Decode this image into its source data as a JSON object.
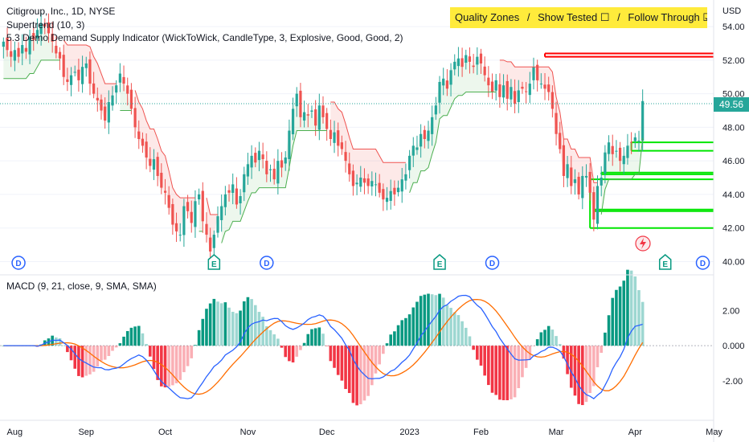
{
  "header": {
    "title": "Citigroup, Inc., 1D, NYSE",
    "supertrend_label": "Supertrend (10, 3)",
    "indicator_label": "5.3 Demo Demand Supply Indicator (WickToWick, CandleType, 3, Explosive, Good, Good, 2)",
    "macd_label": "MACD (9, 21, close, 9, SMA, SMA)"
  },
  "quality_box": {
    "quality": "Quality Zones",
    "sep1": "/",
    "show_tested": "Show Tested ☐",
    "sep2": "/",
    "follow_through": "Follow Through ☑"
  },
  "currency": "USD",
  "last_price": "49.56",
  "colors": {
    "up": "#26a69a",
    "down": "#ef5350",
    "up_bar": "#089981",
    "down_bar": "#f23645",
    "supply": "#ff0000",
    "demand": "#00e600",
    "macd": "#2962ff",
    "signal": "#ff6d00",
    "st_up": "#4caf50",
    "st_down": "#ef5350"
  },
  "chart_data": {
    "type": "candlestick",
    "price_axis": {
      "ticks": [
        "54.00",
        "52.00",
        "50.00",
        "48.00",
        "46.00",
        "44.00",
        "42.00",
        "40.00"
      ],
      "range": [
        39.4,
        55.2
      ]
    },
    "macd_axis": {
      "ticks": [
        "2.00",
        "0.000",
        "-2.00"
      ],
      "range": [
        -4.1,
        3.2
      ]
    },
    "time_labels": [
      "Aug",
      "Sep",
      "Oct",
      "Nov",
      "Dec",
      "2023",
      "Feb",
      "Mar",
      "Apr",
      "May"
    ],
    "events": [
      {
        "type": "D",
        "index": 4
      },
      {
        "type": "E",
        "index": 56
      },
      {
        "type": "D",
        "index": 70
      },
      {
        "type": "E",
        "index": 116
      },
      {
        "type": "D",
        "index": 130
      },
      {
        "type": "E",
        "index": 176
      },
      {
        "type": "D",
        "index": 186
      }
    ],
    "closes": [
      53.1,
      52.6,
      52.2,
      52.6,
      52.2,
      52.9,
      52.5,
      53.4,
      53.2,
      53.8,
      54.2,
      54.0,
      53.6,
      53.1,
      52.4,
      52.1,
      51.0,
      50.7,
      51.1,
      51.3,
      50.8,
      51.6,
      51.8,
      50.6,
      50.0,
      49.6,
      49.0,
      48.4,
      49.5,
      49.9,
      50.5,
      51.2,
      50.6,
      50.0,
      49.1,
      48.0,
      47.3,
      46.9,
      46.2,
      45.7,
      46.1,
      45.1,
      44.4,
      44.1,
      43.2,
      42.2,
      41.8,
      41.6,
      43.3,
      43.0,
      42.3,
      43.6,
      44.0,
      42.4,
      41.6,
      40.6,
      41.6,
      42.7,
      43.3,
      44.0,
      44.1,
      44.6,
      43.4,
      43.9,
      45.2,
      45.8,
      46.3,
      45.9,
      46.6,
      46.1,
      45.2,
      45.5,
      44.9,
      46.0,
      45.6,
      46.2,
      47.8,
      49.1,
      50.0,
      48.6,
      48.9,
      48.7,
      49.0,
      48.1,
      49.3,
      48.6,
      47.9,
      47.3,
      47.7,
      46.9,
      46.7,
      46.0,
      45.2,
      44.5,
      44.7,
      45.0,
      44.7,
      44.5,
      44.8,
      44.6,
      44.1,
      43.7,
      43.8,
      44.2,
      44.0,
      44.4,
      44.9,
      45.2,
      46.3,
      46.9,
      46.8,
      47.6,
      47.3,
      47.8,
      48.6,
      49.3,
      50.7,
      50.9,
      50.3,
      51.4,
      51.9,
      52.1,
      51.6,
      52.3,
      51.9,
      51.6,
      52.2,
      51.8,
      51.1,
      50.5,
      50.1,
      50.8,
      49.8,
      50.5,
      49.7,
      50.4,
      49.4,
      50.2,
      50.3,
      50.1,
      50.6,
      51.6,
      50.8,
      50.6,
      50.3,
      50.1,
      49.1,
      47.6,
      46.7,
      45.1,
      45.8,
      44.5,
      44.9,
      44.0,
      45.1,
      45.1,
      44.1,
      42.5,
      44.5,
      45.0,
      46.5,
      47.1,
      46.4,
      46.6,
      46.0,
      46.3,
      46.9,
      47.1,
      47.4,
      47.2,
      49.56
    ]
  }
}
